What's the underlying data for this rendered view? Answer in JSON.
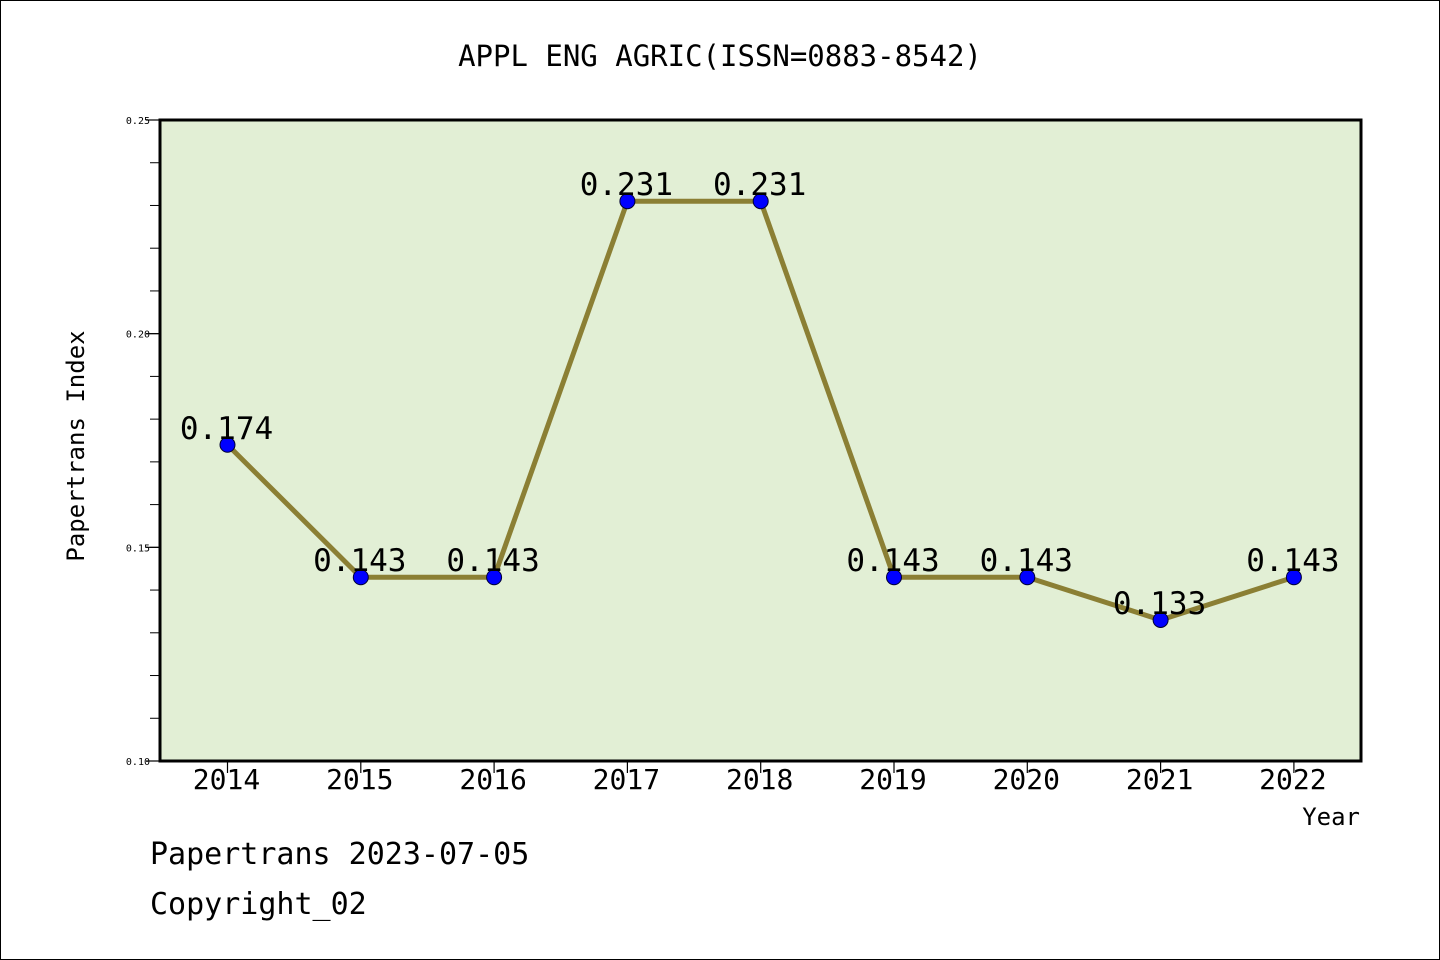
{
  "colors": {
    "plot_background": "#e2efd5",
    "line": "#8b7f34",
    "marker": "#0000ff",
    "axis": "#000000"
  },
  "chart_data": {
    "type": "line",
    "title": "APPL ENG AGRIC(ISSN=0883-8542)",
    "xlabel": "Year",
    "ylabel": "Papertrans Index",
    "categories": [
      "2014",
      "2015",
      "2016",
      "2017",
      "2018",
      "2019",
      "2020",
      "2021",
      "2022"
    ],
    "series": [
      {
        "values": [
          0.174,
          0.143,
          0.143,
          0.231,
          0.231,
          0.143,
          0.143,
          0.133,
          0.143
        ],
        "data_labels": [
          "0.174",
          "0.143",
          "0.143",
          "0.231",
          "0.231",
          "0.143",
          "0.143",
          "0.133",
          "0.143"
        ]
      }
    ],
    "ylim": [
      0.1,
      0.25
    ],
    "yticks": [
      0.1,
      0.15,
      0.2,
      0.25
    ],
    "ytick_labels": [
      "0.10",
      "0.15",
      "0.20",
      "0.25"
    ],
    "grid": false,
    "legend": "none"
  },
  "footer": {
    "line1": "Papertrans 2023-07-05",
    "line2": "Copyright_02"
  }
}
